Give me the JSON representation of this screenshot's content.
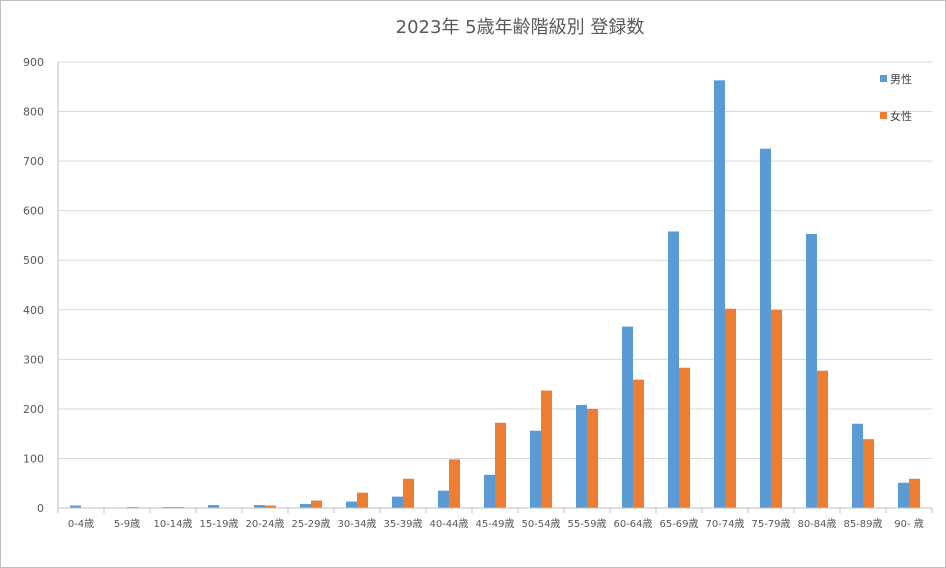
{
  "chart_data": {
    "type": "bar",
    "title": "2023年  5歳年齢階級別  登録数",
    "xlabel": "",
    "ylabel": "",
    "ylim": [
      0,
      900
    ],
    "yticks": [
      0,
      100,
      200,
      300,
      400,
      500,
      600,
      700,
      800,
      900
    ],
    "grid": true,
    "legend_position": "top-right",
    "categories": [
      "0-4歳",
      "5-9歳",
      "10-14歳",
      "15-19歳",
      "20-24歳",
      "25-29歳",
      "30-34歳",
      "35-39歳",
      "40-44歳",
      "45-49歳",
      "50-54歳",
      "55-59歳",
      "60-64歳",
      "65-69歳",
      "70-74歳",
      "75-79歳",
      "80-84歳",
      "85-89歳",
      "90- 歳"
    ],
    "series": [
      {
        "name": "男性",
        "color": "#5B9BD5",
        "values": [
          5,
          0,
          2,
          6,
          6,
          8,
          13,
          23,
          35,
          67,
          156,
          208,
          366,
          558,
          863,
          725,
          553,
          170,
          51
        ]
      },
      {
        "name": "女性",
        "color": "#ED7D31",
        "values": [
          0,
          2,
          2,
          0,
          5,
          15,
          31,
          59,
          98,
          172,
          237,
          200,
          259,
          283,
          402,
          400,
          277,
          139,
          59
        ]
      }
    ]
  }
}
